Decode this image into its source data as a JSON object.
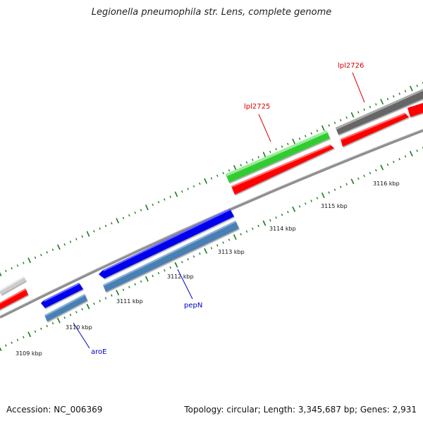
{
  "title": "Legionella pneumophila str. Lens, complete genome",
  "footer": {
    "accession": "Accession: NC_006369",
    "summary": "Topology: circular; Length: 3,345,687 bp; Genes: 2,931"
  },
  "colors": {
    "backbone": "#8f8f8f",
    "tick": "#1a7a1a",
    "red": "#ff0000",
    "blue": "#0000ee",
    "steelblue": "#4a80b4",
    "green": "#33cc33",
    "darkgray": "#666666",
    "lightgray": "#cccccc",
    "label_red": "#dd0000",
    "label_blue": "#0000cc"
  },
  "scale_labels": [
    "3109 kbp",
    "3110 kbp",
    "3111 kbp",
    "3112 kbp",
    "3113 kbp",
    "3114 kbp",
    "3115 kbp",
    "3116 kbp"
  ],
  "gene_labels": {
    "aroE": "aroE",
    "pepN": "pepN",
    "lpl2725": "lpl2725",
    "lpl2726": "lpl2726"
  }
}
